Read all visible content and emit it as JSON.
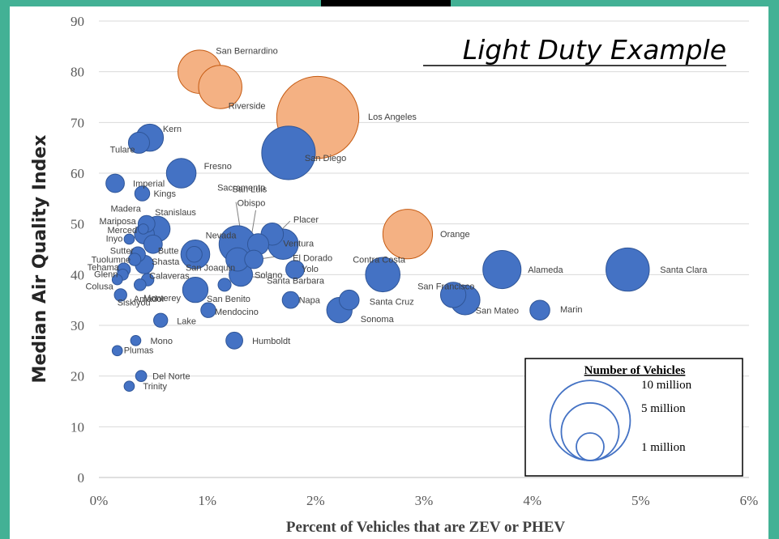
{
  "overlay_title": "Light Duty Example",
  "chart_data": {
    "type": "scatter",
    "subtype": "bubble",
    "title": "",
    "xlabel": "Percent of Vehicles that are ZEV or PHEV",
    "ylabel": "Median Air Quality Index",
    "xlim": [
      0,
      6
    ],
    "ylim": [
      0,
      90
    ],
    "x_ticks": [
      "0%",
      "1%",
      "2%",
      "3%",
      "4%",
      "5%",
      "6%"
    ],
    "y_ticks": [
      "0",
      "10",
      "20",
      "30",
      "40",
      "50",
      "60",
      "70",
      "80",
      "90"
    ],
    "grid": "horizontal",
    "colors": {
      "highlight": "#f4b183",
      "highlight_stroke": "#c55a11",
      "normal": "#4472c4",
      "normal_stroke": "#2f5597"
    },
    "legend": {
      "title": "Number of Vehicles",
      "placement": "bottom-right",
      "entries": [
        {
          "label": "10 million",
          "vehicles_million": 10
        },
        {
          "label": "5 million",
          "vehicles_million": 5
        },
        {
          "label": "1 million",
          "vehicles_million": 1
        }
      ]
    },
    "points": [
      {
        "label": "San Bernardino",
        "x": 0.93,
        "y": 80,
        "vehicles_million": 1.9,
        "highlight": true
      },
      {
        "label": "Riverside",
        "x": 1.12,
        "y": 77,
        "vehicles_million": 1.9,
        "highlight": true
      },
      {
        "label": "Los Angeles",
        "x": 2.02,
        "y": 71,
        "vehicles_million": 8.0,
        "highlight": true
      },
      {
        "label": "Orange",
        "x": 2.85,
        "y": 48,
        "vehicles_million": 2.6,
        "highlight": true
      },
      {
        "label": "Kern",
        "x": 0.47,
        "y": 67,
        "vehicles_million": 0.6
      },
      {
        "label": "Tulare",
        "x": 0.37,
        "y": 66,
        "vehicles_million": 0.3
      },
      {
        "label": "San Diego",
        "x": 1.75,
        "y": 64,
        "vehicles_million": 3.1
      },
      {
        "label": "Fresno",
        "x": 0.76,
        "y": 60,
        "vehicles_million": 0.75
      },
      {
        "label": "Imperial",
        "x": 0.15,
        "y": 58,
        "vehicles_million": 0.2
      },
      {
        "label": "Kings",
        "x": 0.4,
        "y": 56,
        "vehicles_million": 0.1
      },
      {
        "label": "San Luis Obispo",
        "x": 1.47,
        "y": 46,
        "vehicles_million": 0.3
      },
      {
        "label": "Madera",
        "x": 0.44,
        "y": 50,
        "vehicles_million": 0.15
      },
      {
        "label": "Stanislaus",
        "x": 0.54,
        "y": 49,
        "vehicles_million": 0.5
      },
      {
        "label": "Mariposa",
        "x": 0.41,
        "y": 49,
        "vehicles_million": 0.02
      },
      {
        "label": "Merced",
        "x": 0.42,
        "y": 48,
        "vehicles_million": 0.25
      },
      {
        "label": "Inyo",
        "x": 0.28,
        "y": 47,
        "vehicles_million": 0.02
      },
      {
        "label": "Sacramento",
        "x": 1.28,
        "y": 46,
        "vehicles_million": 1.3
      },
      {
        "label": "Placer",
        "x": 1.6,
        "y": 48,
        "vehicles_million": 0.35
      },
      {
        "label": "Ventura",
        "x": 1.7,
        "y": 46,
        "vehicles_million": 0.8
      },
      {
        "label": "El Dorado",
        "x": 1.43,
        "y": 43,
        "vehicles_million": 0.2
      },
      {
        "label": "Nevada",
        "x": 0.88,
        "y": 44,
        "vehicles_million": 0.12
      },
      {
        "label": "Butte",
        "x": 0.5,
        "y": 46,
        "vehicles_million": 0.2
      },
      {
        "label": "Sutter",
        "x": 0.36,
        "y": 44,
        "vehicles_million": 0.1
      },
      {
        "label": "Shasta",
        "x": 0.42,
        "y": 42,
        "vehicles_million": 0.2
      },
      {
        "label": "Tuolumne",
        "x": 0.33,
        "y": 43,
        "vehicles_million": 0.05
      },
      {
        "label": "Tehama",
        "x": 0.23,
        "y": 41,
        "vehicles_million": 0.06
      },
      {
        "label": "Glenn",
        "x": 0.22,
        "y": 40,
        "vehicles_million": 0.03
      },
      {
        "label": "Calaveras",
        "x": 0.45,
        "y": 39,
        "vehicles_million": 0.05
      },
      {
        "label": "Colusa",
        "x": 0.17,
        "y": 39,
        "vehicles_million": 0.02
      },
      {
        "label": "Amador",
        "x": 0.38,
        "y": 38,
        "vehicles_million": 0.04
      },
      {
        "label": "San Joaquin",
        "x": 0.89,
        "y": 44,
        "vehicles_million": 0.7
      },
      {
        "label": "Santa Barbara",
        "x": 1.31,
        "y": 40,
        "vehicles_million": 0.4
      },
      {
        "label": "Solano",
        "x": 1.28,
        "y": 43,
        "vehicles_million": 0.4
      },
      {
        "label": "Yolo",
        "x": 1.81,
        "y": 41,
        "vehicles_million": 0.2
      },
      {
        "label": "Contra Costa",
        "x": 2.62,
        "y": 40,
        "vehicles_million": 1.1
      },
      {
        "label": "Alameda",
        "x": 3.72,
        "y": 41,
        "vehicles_million": 1.4
      },
      {
        "label": "Santa Clara",
        "x": 4.88,
        "y": 41,
        "vehicles_million": 1.9
      },
      {
        "label": "Siskiyou",
        "x": 0.2,
        "y": 36,
        "vehicles_million": 0.05
      },
      {
        "label": "Monterey",
        "x": 0.89,
        "y": 37,
        "vehicles_million": 0.5
      },
      {
        "label": "San Benito",
        "x": 1.16,
        "y": 38,
        "vehicles_million": 0.06
      },
      {
        "label": "Mendocino",
        "x": 1.01,
        "y": 33,
        "vehicles_million": 0.1
      },
      {
        "label": "Lake",
        "x": 0.57,
        "y": 31,
        "vehicles_million": 0.08
      },
      {
        "label": "Napa",
        "x": 1.77,
        "y": 35,
        "vehicles_million": 0.15
      },
      {
        "label": "San Francisco",
        "x": 3.27,
        "y": 36,
        "vehicles_million": 0.5
      },
      {
        "label": "Sonoma",
        "x": 2.22,
        "y": 33,
        "vehicles_million": 0.5
      },
      {
        "label": "Santa Cruz",
        "x": 2.31,
        "y": 35,
        "vehicles_million": 0.25
      },
      {
        "label": "San Mateo",
        "x": 3.38,
        "y": 35,
        "vehicles_million": 0.75
      },
      {
        "label": "Marin",
        "x": 4.07,
        "y": 33,
        "vehicles_million": 0.25
      },
      {
        "label": "Humboldt",
        "x": 1.25,
        "y": 27,
        "vehicles_million": 0.15
      },
      {
        "label": "Mono",
        "x": 0.34,
        "y": 27,
        "vehicles_million": 0.02
      },
      {
        "label": "Plumas",
        "x": 0.17,
        "y": 25,
        "vehicles_million": 0.02
      },
      {
        "label": "Del Norte",
        "x": 0.39,
        "y": 20,
        "vehicles_million": 0.03
      },
      {
        "label": "Trinity",
        "x": 0.28,
        "y": 18,
        "vehicles_million": 0.02
      }
    ]
  }
}
